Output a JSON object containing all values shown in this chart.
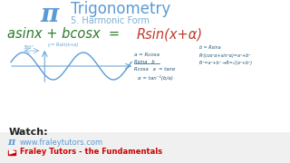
{
  "bg_color": "#f0f0f0",
  "title_text": "Trigonometry",
  "subtitle_text": "5. Harmonic Form",
  "title_color": "#5b9bd5",
  "subtitle_color": "#7bafd4",
  "pi_color": "#5b9bd5",
  "formula_green": "asinx + bcosx  =  ",
  "formula_red": "Rsin(x+α)",
  "formula_color_green": "#2d7a2d",
  "formula_color_red": "#c0392b",
  "watch_label": "Watch:",
  "watch_color": "#222222",
  "website_text": "www.fraleytutors.com",
  "website_color": "#5b9bd5",
  "youtube_label": "Fraley Tutors - the Fundamentals",
  "youtube_color": "#cc0000",
  "notes_color": "#1a5276",
  "wave_color": "#5b9bd5",
  "axis_color": "#5b9bd5",
  "graph_label": "y = Rsin(x+α)",
  "period_label": "360°",
  "handwritten_lines_left": [
    "a = Rcosa",
    "Rsina   b",
    "Rcosa   a  = tanα",
    "α = tan⁻¹(b/a)"
  ],
  "handwritten_lines_right": [
    "b = Rsina",
    "R²(cos²α+sin²α)=a²+b²",
    "R²=a²+b² →R=√(a²+b²)"
  ]
}
